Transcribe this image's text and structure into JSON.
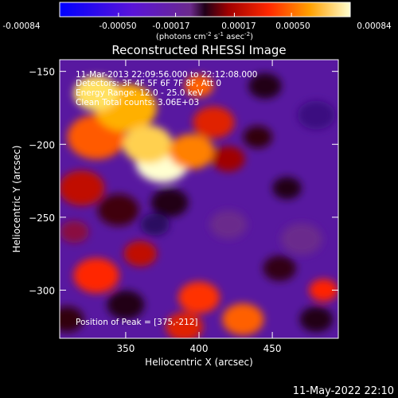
{
  "colorbar": {
    "ticks": [
      "-0.00084",
      "-0.00050",
      "-0.00017",
      "0.00017",
      "0.00050",
      "0.00084"
    ],
    "tick_values": [
      -0.00084,
      -0.0005,
      -0.00017,
      0.00017,
      0.0005,
      0.00084
    ],
    "range": [
      -0.00084,
      0.00084
    ],
    "units_prefix": "(photons cm",
    "units_exp1": "-2",
    "units_mid": " s",
    "units_exp2": "-1",
    "units_mid2": " asec",
    "units_exp3": "-2",
    "units_suffix": ")"
  },
  "chart_data": {
    "type": "heatmap",
    "title": "Reconstructed RHESSI Image",
    "xlabel": "Heliocentric X (arcsec)",
    "ylabel": "Heliocentric Y (arcsec)",
    "xlim": [
      305,
      495
    ],
    "ylim": [
      -333,
      -142
    ],
    "xticks": [
      350,
      400,
      450
    ],
    "yticks": [
      -150,
      -200,
      -250,
      -300
    ],
    "annotations": [
      "11-Mar-2013 22:09:56.000 to 22:12:08.000",
      "Detectors: 3F 4F 5F 6F 7F 8F, Att 0",
      "Energy Range: 12.0 - 25.0 keV",
      "Clean    Total counts: 3.06E+03"
    ],
    "peak_label": "Position of Peak = [375,-212]",
    "peak": [
      375,
      -212
    ]
  },
  "footer": {
    "timestamp": "11-May-2022 22:10"
  },
  "colors": {
    "background": "#000000",
    "foreground": "#ffffff"
  }
}
